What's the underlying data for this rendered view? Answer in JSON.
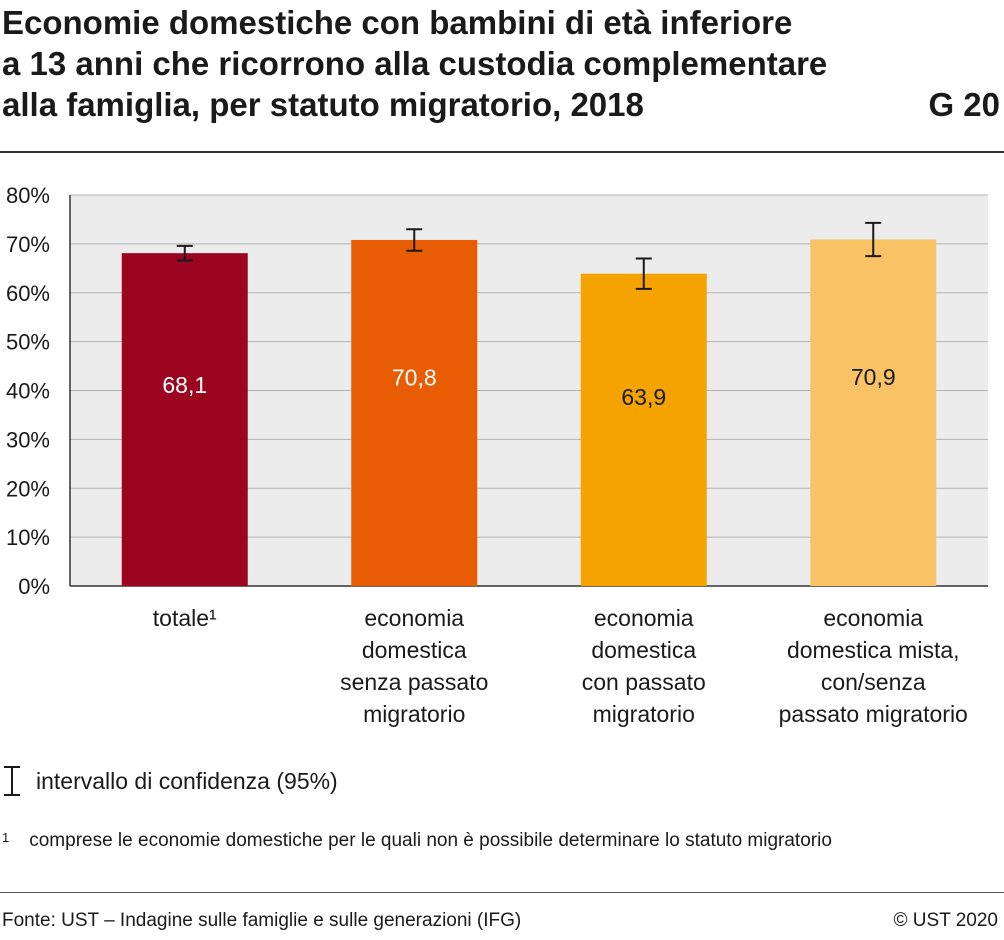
{
  "header": {
    "title": "Economie domestiche con bambini di età inferiore\na 13 anni che ricorrono alla custodia complementare\nalla famiglia, per statuto migratorio, 2018",
    "graphic_code": "G 20"
  },
  "chart_data": {
    "type": "bar",
    "categories": [
      "totale¹",
      "economia domestica senza passato migratorio",
      "economia domestica con passato migratorio",
      "economia domestica mista, con/senza passato migratorio"
    ],
    "category_lines": [
      [
        "totale¹"
      ],
      [
        "economia",
        "domestica",
        "senza passato",
        "migratorio"
      ],
      [
        "economia",
        "domestica",
        "con passato",
        "migratorio"
      ],
      [
        "economia",
        "domestica mista,",
        "con/senza",
        "passato migratorio"
      ]
    ],
    "values": [
      68.1,
      70.8,
      63.9,
      70.9
    ],
    "value_labels": [
      "68,1",
      "70,8",
      "63,9",
      "70,9"
    ],
    "ci_low": [
      66.6,
      68.6,
      60.8,
      67.5
    ],
    "ci_high": [
      69.6,
      73.0,
      67.0,
      74.3
    ],
    "colors": [
      "#9b0520",
      "#e85d04",
      "#f4a300",
      "#f9c365"
    ],
    "value_label_colors": [
      "#ffffff",
      "#ffffff",
      "#1a1a1a",
      "#1a1a1a"
    ],
    "ylim": [
      0,
      80
    ],
    "yticks": [
      0,
      10,
      20,
      30,
      40,
      50,
      60,
      70,
      80
    ],
    "ytick_labels": [
      "0%",
      "10%",
      "20%",
      "30%",
      "40%",
      "50%",
      "60%",
      "70%",
      "80%"
    ],
    "grid": true,
    "plot_background": "#ececec",
    "xlabel": "",
    "ylabel": ""
  },
  "legend": {
    "label": "intervallo di confidenza (95%)"
  },
  "footnote": {
    "mark": "1",
    "text": "comprese le economie domestiche per le quali non è possibile determinare lo statuto migratorio"
  },
  "footer": {
    "source": "Fonte: UST – Indagine sulle famiglie e sulle generazioni (IFG)",
    "copyright": "© UST 2020"
  }
}
